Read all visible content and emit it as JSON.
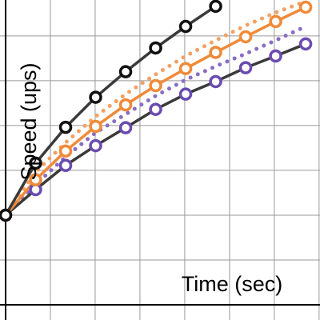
{
  "chart_data": {
    "type": "line",
    "x_label": "Time (sec)",
    "y_label": "Speed (ups)",
    "x": [
      0,
      0.67,
      1.34,
      2.01,
      2.68,
      3.35,
      4.02,
      4.69,
      5.36,
      6.03,
      6.7
    ],
    "xlim": [
      0,
      7.02
    ],
    "ylim": [
      0,
      6.8
    ],
    "xticks": [
      1,
      2,
      3,
      4,
      5,
      6,
      7
    ],
    "yticks": [
      1,
      2,
      3,
      4,
      5,
      6
    ],
    "grid": true,
    "series": [
      {
        "color": "#f4a064",
        "style": "dotted",
        "markers": false,
        "values": [
          2,
          2.96,
          3.62,
          4.2,
          4.7,
          5.14,
          5.55,
          5.9,
          6.23,
          6.52,
          6.77
        ]
      },
      {
        "color": "#8a6cc4",
        "style": "dotted",
        "markers": false,
        "values": [
          2,
          2.68,
          3.3,
          3.84,
          4.25,
          4.66,
          5.02,
          5.32,
          5.6,
          5.9,
          6.21
        ]
      },
      {
        "color": "#222222",
        "line_color": "#3a3a3a",
        "style": "solid",
        "markers": true,
        "values": [
          2,
          2.57,
          3.11,
          3.55,
          3.95,
          4.36,
          4.7,
          4.98,
          5.29,
          5.55,
          5.82
        ],
        "marker_color": "#6a4cb0"
      },
      {
        "color": "#f08a38",
        "line_color": "#f08a38",
        "style": "solid",
        "markers": true,
        "values": [
          2,
          2.79,
          3.43,
          3.98,
          4.46,
          4.89,
          5.27,
          5.63,
          5.98,
          6.32,
          6.64
        ],
        "marker_color": "#f08a38"
      },
      {
        "color": "#222222",
        "line_color": "#3a3a3a",
        "style": "solid",
        "markers": true,
        "values": [
          2,
          3.16,
          3.96,
          4.63,
          5.2,
          5.73,
          6.21,
          6.66,
          null,
          null,
          null
        ],
        "marker_color": "#111111"
      }
    ]
  }
}
